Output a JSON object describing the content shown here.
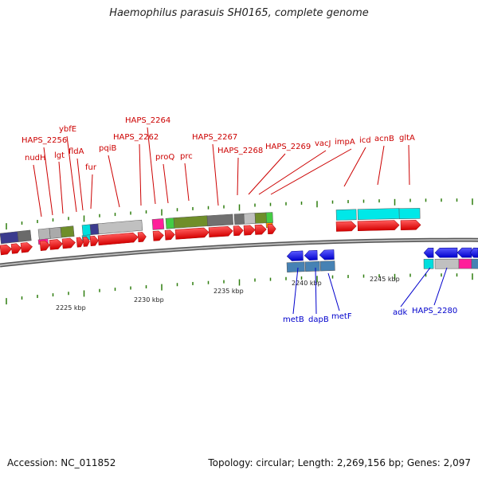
{
  "title": "Haemophilus parasuis SH0165, complete genome",
  "footer": {
    "accession": "Accession: NC_011852",
    "summary": "Topology: circular; Length: 2,269,156 bp; Genes: 2,097"
  },
  "colors": {
    "forward_gene": "#ff0000",
    "reverse_gene": "#1a1aff",
    "forward_label": "#cc0000",
    "reverse_label": "#0000cc",
    "backbone": "#888888",
    "tick": "#2e7d0e"
  },
  "scale_labels": [
    "2225 kbp",
    "2230 kbp",
    "2235 kbp",
    "2240 kbp",
    "2245 kbp"
  ],
  "forward_labels": [
    "nudH",
    "HAPS_2256",
    "lgt",
    "ybfE",
    "fldA",
    "fur",
    "pqiB",
    "HAPS_2262",
    "HAPS_2264",
    "proQ",
    "prc",
    "HAPS_2267",
    "HAPS_2268",
    "HAPS_2269",
    "vacJ",
    "impA",
    "icd",
    "acnB",
    "gltA"
  ],
  "reverse_labels": [
    "metB",
    "dapB",
    "metF",
    "adk",
    "HAPS_2280"
  ]
}
